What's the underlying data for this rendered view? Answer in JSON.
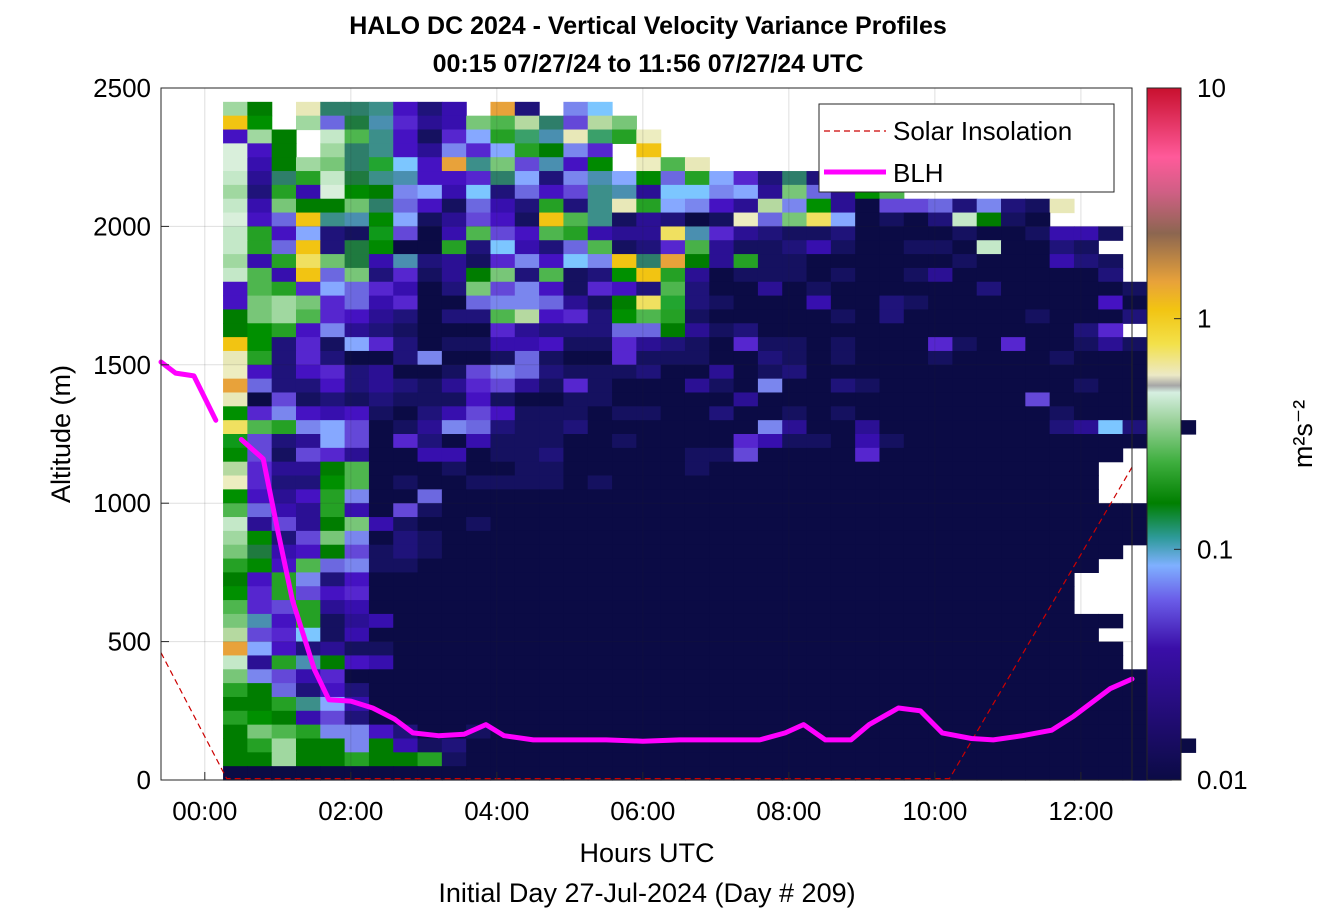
{
  "chart_data": {
    "type": "heatmap",
    "title": "HALO DC 2024 - Vertical Velocity Variance Profiles",
    "subtitle": "00:15 07/27/24 to 11:56 07/27/24  UTC",
    "xlabel": "Hours UTC",
    "footer": "Initial Day 27-Jul-2024 (Day # 209)",
    "ylabel": "Altitude (m)",
    "colorbar_label": "m²s⁻²",
    "colorbar_scale": "log",
    "colorbar_range": [
      0.01,
      10
    ],
    "colorbar_ticks": [
      "0.01",
      "0.1",
      "1",
      "10"
    ],
    "xlim_hours": [
      -0.6,
      12.7
    ],
    "ylim": [
      0,
      2500
    ],
    "x_ticks": [
      {
        "hour": 0,
        "label": "00:00"
      },
      {
        "hour": 2,
        "label": "02:00"
      },
      {
        "hour": 4,
        "label": "04:00"
      },
      {
        "hour": 6,
        "label": "06:00"
      },
      {
        "hour": 8,
        "label": "08:00"
      },
      {
        "hour": 10,
        "label": "10:00"
      },
      {
        "hour": 12,
        "label": "12:00"
      }
    ],
    "y_ticks": [
      0,
      500,
      1000,
      1500,
      2000,
      2500
    ],
    "grid": true,
    "legend": {
      "placement": "top-right",
      "entries": [
        "Solar Insolation",
        "BLH"
      ]
    },
    "colors": {
      "blh": "#ff00ff",
      "solar": "#cc0000"
    },
    "blh": {
      "name": "BLH",
      "segments": [
        {
          "x": [
            -0.6,
            -0.4,
            -0.15,
            0.15
          ],
          "y": [
            1510,
            1470,
            1460,
            1300
          ]
        },
        {
          "x": [
            0.5,
            0.8,
            1.0,
            1.2,
            1.5,
            1.7,
            2.0,
            2.3,
            2.6,
            2.85,
            3.2,
            3.55,
            3.85,
            4.1,
            4.5,
            5.0,
            5.5,
            6.0,
            6.5,
            7.0,
            7.3,
            7.6,
            7.95,
            8.2,
            8.5,
            8.85,
            9.1,
            9.5,
            9.8,
            10.1,
            10.5,
            10.8,
            11.2,
            11.6,
            11.9,
            12.1,
            12.4,
            12.7
          ],
          "y": [
            1230,
            1160,
            900,
            650,
            400,
            290,
            285,
            260,
            220,
            170,
            160,
            165,
            200,
            160,
            145,
            145,
            145,
            140,
            145,
            145,
            145,
            145,
            170,
            200,
            145,
            145,
            200,
            260,
            250,
            170,
            150,
            145,
            160,
            180,
            230,
            270,
            330,
            365
          ]
        }
      ]
    },
    "solar": {
      "name": "Solar Insolation",
      "x": [
        -0.6,
        0.3,
        10.2,
        12.7
      ],
      "y": [
        460,
        5,
        5,
        1130
      ]
    },
    "grid_x_start_hour": 0.25,
    "grid_x_step_hours": 0.333,
    "grid_y_step_m": 50,
    "grid_y_top_m": 2450,
    "cells": [
      "",
      "0wB3oonfceJ6cOjl",
      "5vA0ipmgdezy8oh8z",
      "f0wB1ynfbgkx9m39x7",
      "2fwA0onfdjgkxwjgA5",
      "2ew0zoslf6nzhmfqB7y3",
      "1dox1pnmffgokcjmkqixkgcocjfjf",
      "0cxe2qwjkelcifhnmdlljkdzidvy",
      "1ezwwuoifbiecxcn3xkjfd8jvdahhicjcb3",
      "2fi5nmqkbdhfb5ynbdcab7iz4kabac1wba",
      "1xfkcbrhaeyhfyxedd4mgdcbbcaaaabaabeeb",
      "1xi5cpqaaxcleciybcgtdbbcebaabba1aacb",
      "0ex4upemcdbgjflj5o6wdxbbaaaaaabaaaecb",
      "1ye5izcgbdwzcybcv5xdabbbabaabdaaaaaac",
      "fyxgkigeaczhjfbgfcycaadabaaaaaacaaaaab",
      "fz0zgiegaaijjidbw4scbaaaeaacbaaaaaaafa",
      "wz0ygfdcaccy8fgcvyxbaaaaabacaaaaabaaac",
      "wvxfjdcbaaagdccciiwdbcaaaaaaaaaaaaacg",
      "5vcgbkgcabbeefbbgdcbagbbabaaagbagaabdb",
      "3xcgcaacjaabibaagbbbaacbabaaabaaaabaaa",
      "7fcfgcdaabhjicbbbcaadabcaaaaaaaaaaaaaaa",
      "6iccfcdcbdghdbgbaaadbajaacbaaaaaaaabaaa",
      "3ahbcbcbbbfbaabbaaaaadaaaaaaaaaaahaaaa",
      "vgjfefbacehfbbbabbaacaababaaaaaaaabaaaa",
      "4yxjkhabdjicbbcaaaaaaajdaadaaaaaaacdlcha",
      "rhcdkhagcaebbbaabaaaagebbaebaaaaaaaaaa",
      "qhbhgdaaeeabbcaaaaabbhaaaagaaaaaaaaaa",
      "8gddwyaaabaabbaaaaabaaaaaaaaaaaaaaaa",
      "7gccvyabaabbbbabaaaaaaaaaaaaaaaaaaaa",
      "vfdfxjaaiaaaaaaaaaaaaaaaaaaaaaaaaaaa",
      "yiedxeahbaaaaaaaaaaaaaaaaaaaaaaaaaaaaa",
      "1dhdwzebaabaaaaaaaaaaaaaaaaaaaaaaaaaaaa",
      "0qchzjacbaaaaaaaaaaaaaaaaaaaaaaaaaaaaa",
      "zpefwhbcbaaaaaaaaaaaaaaaaaaaaaaaaaaaa",
      "xqfyijbbaaaaaaaaaaaaaaaaaaaaaaaaaaaa",
      "wfxjcfaaaaaaaaaaaaaaaaaaaaaaaaaaaaa",
      "vgxhfgaaaaaaaaaaaaaaaaaaaaaaaaaaaaa",
      "yghxdeaaaaaaaaaaaaaaaaaaaaaaaaaaaaa",
      "zmfxbdeaaaaaaaaaaaaaaaaaaaaaaaaaaaaaa",
      "8hglbeaaaaaaaaaaaaaaaaaaaaaaaaaaaaaa",
      "6kfcdbbaaaaaaaaaaaaaaaaaaaaaaaaaaaaaa",
      "1dxmwfeaaaaaaaaaaaaaaaaaaaaaaaaaaaaaa",
      "zjhegaaaaaaaaaaaaaaaaaaaaaaaaaaaaaaaaa",
      "xwicfcaaaaaaaaaaaaaaaaaaaaaaaaaaaaaaaa",
      "wwxnkeaaaaaaaaaaaaaaaaaaaaaaaaaaaaaaaa",
      "xvwehcaaaaaaaaaaaaaaaaaaaaaaaaaaaaaaaaa",
      "wzyxjjfcaabaaaaaaaaaaaaaaaaaaaaaaaaaaaa",
      "wx0wwjwebcaaaaaaaaaaaaaaaaaaaaaaaaaaaaaa",
      "ww0wwxwwxbaaaaaaaaaaaaaaaaaaaaaaaaaaaaa",
      "aaaaaaaaaaaaaaaaaaaaaaaaaaaaaaaaaaaaaaa"
    ]
  }
}
